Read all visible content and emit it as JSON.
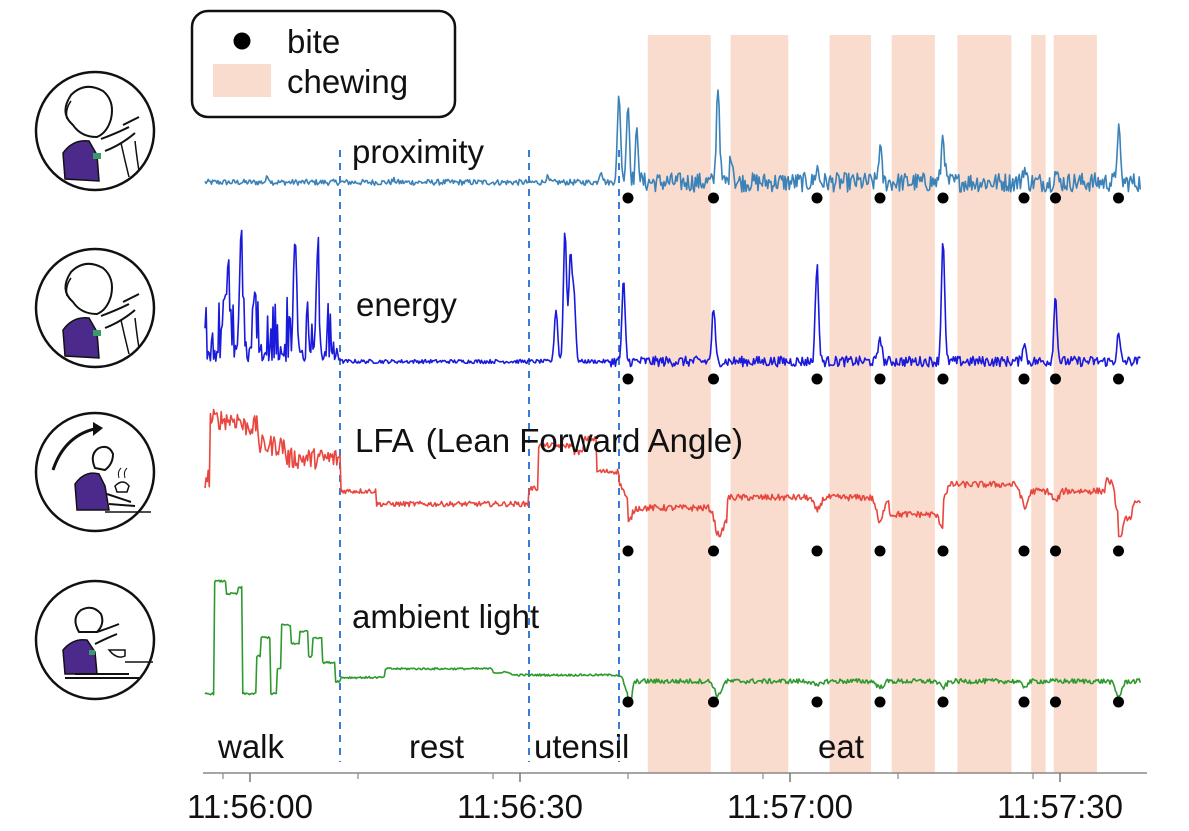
{
  "chart_data": {
    "type": "line",
    "title": "",
    "xlabel": "",
    "ylabel": "",
    "x_ticks": [
      "11:56:00",
      "11:56:30",
      "11:57:00",
      "11:57:30"
    ],
    "x_tick_seconds": [
      0,
      30,
      60,
      90
    ],
    "x_range_seconds": [
      -5,
      99
    ],
    "legend": {
      "position": "top-left",
      "entries": [
        {
          "label": "bite",
          "marker": "dot",
          "color": "#000000"
        },
        {
          "label": "chewing",
          "marker": "band",
          "color": "#f9dccd"
        }
      ]
    },
    "activity_boundaries_seconds": [
      10,
      31,
      41
    ],
    "activities": [
      {
        "label": "walk",
        "start": -5,
        "end": 10
      },
      {
        "label": "rest",
        "start": 10,
        "end": 31
      },
      {
        "label": "utensil",
        "start": 31,
        "end": 41
      },
      {
        "label": "eat",
        "start": 41,
        "end": 99
      }
    ],
    "chewing_intervals_seconds": [
      [
        44.2,
        51.2
      ],
      [
        53.4,
        59.8
      ],
      [
        64.4,
        69.0
      ],
      [
        71.3,
        76.1
      ],
      [
        78.6,
        84.6
      ],
      [
        86.8,
        88.4
      ],
      [
        89.3,
        94.1
      ]
    ],
    "bite_times_seconds": [
      42,
      51.5,
      63,
      70,
      77,
      86,
      89.5,
      96.5
    ],
    "series": [
      {
        "name": "proximity",
        "color": "#3a82b8",
        "baseline": 0.1,
        "noise_segments": [
          [
            -5,
            42,
            0.03
          ],
          [
            42,
            99,
            0.1
          ]
        ],
        "bumps": [
          [
            2,
            0.06
          ],
          [
            16,
            0.02
          ],
          [
            33,
            0.05
          ],
          [
            39,
            0.12
          ],
          [
            41,
            0.9
          ],
          [
            42,
            0.8
          ],
          [
            43,
            0.5
          ],
          [
            52,
            1.0
          ],
          [
            53.5,
            0.3
          ],
          [
            63,
            0.15
          ],
          [
            70,
            0.35
          ],
          [
            77,
            0.5
          ],
          [
            86,
            0.15
          ],
          [
            89.5,
            0.1
          ],
          [
            96.5,
            0.55
          ]
        ]
      },
      {
        "name": "energy",
        "color": "#1a1adc",
        "baseline": 0.05,
        "noise_segments": [
          [
            -5,
            10,
            0.35
          ],
          [
            10,
            40,
            0.015
          ],
          [
            40,
            99,
            0.04
          ]
        ],
        "bumps": [
          [
            -2.5,
            0.5
          ],
          [
            -1,
            0.9
          ],
          [
            0.5,
            0.5
          ],
          [
            5,
            0.9
          ],
          [
            7.5,
            0.6
          ],
          [
            34,
            0.4
          ],
          [
            35,
            1.0
          ],
          [
            35.6,
            0.8
          ],
          [
            36,
            0.5
          ],
          [
            41.5,
            0.6
          ],
          [
            51.5,
            0.4
          ],
          [
            63,
            0.75
          ],
          [
            70,
            0.2
          ],
          [
            77,
            0.95
          ],
          [
            86,
            0.15
          ],
          [
            89.5,
            0.5
          ],
          [
            96.5,
            0.2
          ]
        ]
      },
      {
        "name": "LFA",
        "color": "#e8463e",
        "baseline": 0.35,
        "noise_segments": [
          [
            -5,
            10,
            0.08
          ],
          [
            10,
            42,
            0.02
          ],
          [
            42,
            99,
            0.025
          ]
        ],
        "level_steps": [
          [
            -5,
            0.4
          ],
          [
            -4.5,
            0.85
          ],
          [
            -1,
            0.8
          ],
          [
            1,
            0.65
          ],
          [
            4,
            0.55
          ],
          [
            10,
            0.3
          ],
          [
            13,
            0.3
          ],
          [
            14,
            0.2
          ],
          [
            16,
            0.2
          ],
          [
            31,
            0.32
          ],
          [
            32,
            0.65
          ],
          [
            36,
            0.6
          ],
          [
            37,
            0.7
          ],
          [
            38.5,
            0.45
          ],
          [
            41,
            0.35
          ],
          [
            42,
            0.17
          ],
          [
            52,
            0.07
          ],
          [
            53,
            0.25
          ],
          [
            70,
            0.25
          ],
          [
            71,
            0.12
          ],
          [
            77,
            0.35
          ],
          [
            86,
            0.3
          ],
          [
            95,
            0.38
          ],
          [
            96.5,
            0.1
          ],
          [
            98,
            0.2
          ]
        ],
        "dips": [
          [
            42,
            0.12
          ],
          [
            52,
            0.2
          ],
          [
            63,
            0.1
          ],
          [
            70,
            0.2
          ],
          [
            77,
            0.1
          ],
          [
            86,
            0.15
          ],
          [
            89.5,
            0.08
          ],
          [
            96.5,
            0.25
          ]
        ]
      },
      {
        "name": "ambient light",
        "color": "#2e9a2e",
        "baseline": 0.15,
        "noise_segments": [
          [
            -5,
            42,
            0.008
          ],
          [
            42,
            99,
            0.02
          ]
        ],
        "level_steps": [
          [
            -5,
            0.05
          ],
          [
            -4,
            0.95
          ],
          [
            -2.7,
            0.85
          ],
          [
            -1.3,
            0.9
          ],
          [
            -0.8,
            0.05
          ],
          [
            0.7,
            0.35
          ],
          [
            1.2,
            0.5
          ],
          [
            2.3,
            0.05
          ],
          [
            3,
            0.25
          ],
          [
            3.5,
            0.6
          ],
          [
            4.5,
            0.45
          ],
          [
            5.5,
            0.55
          ],
          [
            6.5,
            0.35
          ],
          [
            7,
            0.5
          ],
          [
            8,
            0.3
          ],
          [
            9.5,
            0.15
          ],
          [
            10,
            0.18
          ],
          [
            15,
            0.25
          ],
          [
            27,
            0.22
          ],
          [
            29,
            0.2
          ],
          [
            42,
            0.08
          ],
          [
            42.5,
            0.15
          ],
          [
            99,
            0.15
          ]
        ],
        "dips": [
          [
            42,
            0.15
          ],
          [
            52,
            0.12
          ],
          [
            63,
            0.04
          ],
          [
            70,
            0.05
          ],
          [
            77,
            0.05
          ],
          [
            86,
            0.04
          ],
          [
            96.5,
            0.12
          ]
        ]
      }
    ]
  },
  "labels": {
    "bite": "bite",
    "chewing": "chewing",
    "proximity": "proximity",
    "energy": "energy",
    "lfa": "LFA",
    "lfa_full": "(Lean Forward Angle)",
    "ambient_light": "ambient light",
    "walk": "walk",
    "rest": "rest",
    "utensil": "utensil",
    "eat": "eat"
  }
}
